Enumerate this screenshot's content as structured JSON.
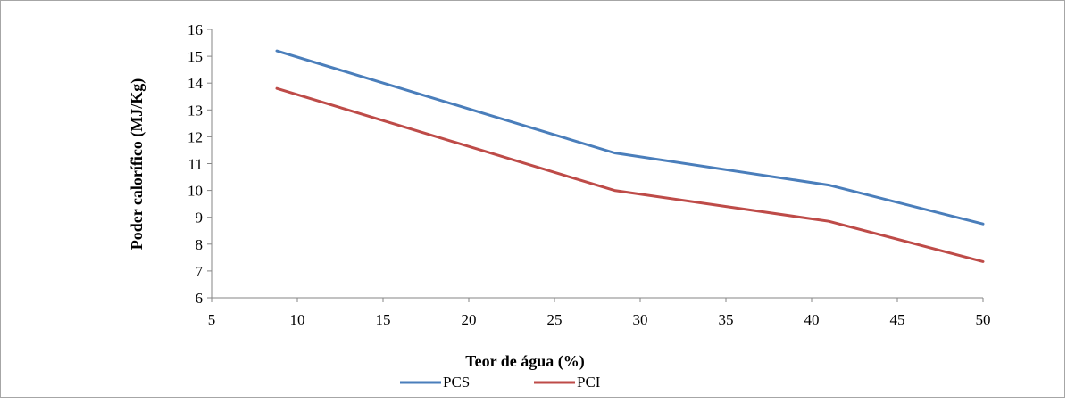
{
  "chart_data": {
    "type": "line",
    "xlabel": "Teor de água (%)",
    "ylabel": "Poder calorífico (MJ/Kg)",
    "xlim": [
      5,
      50
    ],
    "ylim": [
      6,
      16
    ],
    "x_ticks": [
      5,
      10,
      15,
      20,
      25,
      30,
      35,
      40,
      45,
      50
    ],
    "y_ticks": [
      6,
      7,
      8,
      9,
      10,
      11,
      12,
      13,
      14,
      15,
      16
    ],
    "grid": false,
    "legend_position": "bottom",
    "series": [
      {
        "name": "PCS",
        "color": "#4a7ebb",
        "points": [
          [
            8.8,
            15.2
          ],
          [
            28.5,
            11.4
          ],
          [
            41.0,
            10.2
          ],
          [
            50.0,
            8.75
          ]
        ]
      },
      {
        "name": "PCI",
        "color": "#be4b48",
        "points": [
          [
            8.8,
            13.8
          ],
          [
            28.5,
            10.0
          ],
          [
            41.0,
            8.85
          ],
          [
            50.0,
            7.35
          ]
        ]
      }
    ]
  }
}
